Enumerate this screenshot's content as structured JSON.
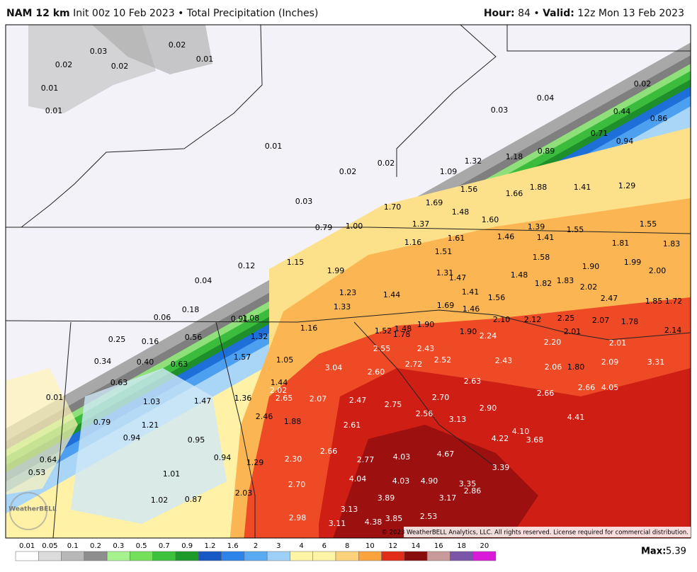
{
  "header": {
    "model": "NAM 12 km",
    "init": "Init 00z 10 Feb 2023 • Total Precipitation (Inches)",
    "hour_label": "Hour:",
    "hour": "84 •",
    "valid_label": "Valid:",
    "valid": "12z Mon 13 Feb 2023"
  },
  "map": {
    "labels": [
      "0.03",
      "0.02",
      "0.02",
      "0.02",
      "0.01",
      "0.01",
      "0.01",
      "0.04",
      "0.02",
      "0.03",
      "0.44",
      "0.86",
      "0.71",
      "0.94",
      "0.01",
      "0.89",
      "1.18",
      "0.02",
      "0.02",
      "1.32",
      "1.09",
      "1.88",
      "1.41",
      "1.29",
      "1.56",
      "1.66",
      "0.03",
      "1.70",
      "1.69",
      "1.48",
      "1.60",
      "1.55",
      "0.79",
      "1.00",
      "1.37",
      "1.39",
      "1.55",
      "1.16",
      "1.61",
      "1.46",
      "1.41",
      "1.81",
      "1.83",
      "1.51",
      "1.58",
      "0.12",
      "1.15",
      "1.99",
      "1.31",
      "1.47",
      "1.48",
      "1.90",
      "1.99",
      "2.00",
      "1.82",
      "1.83",
      "2.02",
      "0.04",
      "1.23",
      "1.44",
      "1.41",
      "1.56",
      "2.47",
      "1.85",
      "1.72",
      "1.33",
      "1.69",
      "1.46",
      "0.06",
      "0.18",
      "0.91",
      "1.08",
      "1.16",
      "1.52",
      "1.48",
      "1.78",
      "1.90",
      "1.90",
      "2.24",
      "2.10",
      "2.12",
      "2.25",
      "2.07",
      "1.78",
      "2.14",
      "2.01",
      "0.25",
      "0.16",
      "0.56",
      "1.32",
      "2.55",
      "2.43",
      "2.20",
      "2.01",
      "1.57",
      "1.05",
      "2.52",
      "2.43",
      "2.72",
      "3.04",
      "2.06",
      "1.80",
      "2.09",
      "3.31",
      "0.34",
      "0.40",
      "0.63",
      "2.60",
      "2.63",
      "1.44",
      "2.02",
      "2.66",
      "4.05",
      "0.63",
      "2.65",
      "2.07",
      "2.47",
      "2.70",
      "2.66",
      "0.01",
      "1.03",
      "1.47",
      "1.36",
      "2.75",
      "2.90",
      "2.46",
      "1.88",
      "2.56",
      "3.13",
      "4.41",
      "0.79",
      "1.21",
      "2.61",
      "4.10",
      "0.94",
      "0.95",
      "4.22",
      "3.68",
      "2.66",
      "4.67",
      "2.77",
      "4.03",
      "0.94",
      "2.30",
      "1.29",
      "3.39",
      "0.64",
      "0.53",
      "1.01",
      "4.04",
      "4.03",
      "4.90",
      "3.35",
      "2.86",
      "2.70",
      "2.03",
      "3.89",
      "3.17",
      "1.02",
      "0.87",
      "3.13",
      "2.53",
      "2.98",
      "3.85",
      "3.11",
      "4.38"
    ],
    "logo": "WeatherBELL",
    "copyright": "© 2023 WeatherBELL Analytics, LLC. All rights reserved. License required for commercial distribution."
  },
  "legend": {
    "ticks": [
      "0.01",
      "0.05",
      "0.1",
      "0.2",
      "0.3",
      "0.5",
      "0.7",
      "0.9",
      "1.2",
      "1.6",
      "2",
      "3",
      "4",
      "6",
      "8",
      "10",
      "12",
      "14",
      "16",
      "18",
      "20"
    ],
    "max_label": "Max:",
    "max": "5.39"
  }
}
